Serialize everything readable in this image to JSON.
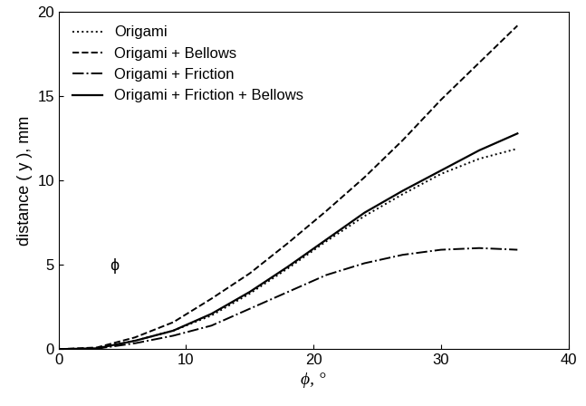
{
  "chart_data": {
    "type": "line",
    "x_label": "ϕ, °",
    "y_label": "distance ( y ), mm",
    "annotations": [
      "ϕ"
    ],
    "x": [
      0,
      3,
      6,
      9,
      12,
      15,
      18,
      21,
      24,
      27,
      30,
      33,
      36
    ],
    "series": [
      {
        "name": "Origami",
        "color": "#000000",
        "line_style": "dotted",
        "values": [
          0,
          0.05,
          0.5,
          1.1,
          2.0,
          3.3,
          4.8,
          6.4,
          7.9,
          9.2,
          10.4,
          11.3,
          11.9
        ]
      },
      {
        "name": "Origami + Bellows",
        "color": "#000000",
        "line_style": "dashed",
        "values": [
          0,
          0.1,
          0.7,
          1.6,
          3.0,
          4.5,
          6.3,
          8.2,
          10.2,
          12.4,
          14.8,
          17.0,
          19.2
        ]
      },
      {
        "name": "Origami + Friction",
        "color": "#000000",
        "line_style": "dashdot",
        "values": [
          0,
          0.03,
          0.35,
          0.8,
          1.4,
          2.4,
          3.4,
          4.4,
          5.1,
          5.6,
          5.9,
          6.0,
          5.9
        ]
      },
      {
        "name": "Origami + Friction + Bellows",
        "color": "#000000",
        "line_style": "solid",
        "values": [
          0,
          0.05,
          0.5,
          1.1,
          2.1,
          3.4,
          4.9,
          6.5,
          8.1,
          9.4,
          10.6,
          11.8,
          12.8
        ]
      }
    ],
    "xlim": [
      0,
      40
    ],
    "xticks": [
      0,
      10,
      20,
      30,
      40
    ],
    "ylim": [
      0,
      20
    ],
    "yticks": [
      0,
      5,
      10,
      15,
      20
    ],
    "grid": false,
    "legend": "upper left"
  }
}
